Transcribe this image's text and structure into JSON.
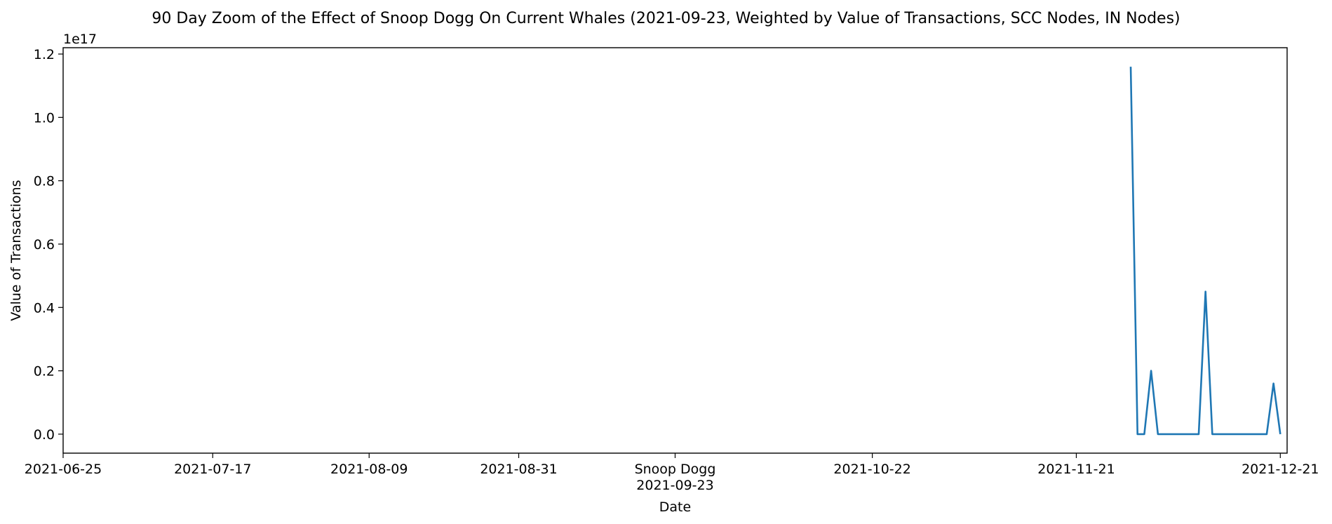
{
  "chart_data": {
    "type": "line",
    "title": "90 Day Zoom of the Effect of Snoop Dogg On Current Whales (2021-09-23, Weighted by Value of Transactions, SCC Nodes, IN Nodes)",
    "xlabel": "Date",
    "ylabel": "Value of Transactions",
    "y_offset_label": "1e17",
    "xlim": [
      "2021-06-25",
      "2021-12-22"
    ],
    "ylim": [
      -0.06,
      1.22
    ],
    "y_unit_scale": 1e+17,
    "x_ticks": [
      {
        "date": "2021-06-25",
        "label": "2021-06-25"
      },
      {
        "date": "2021-07-17",
        "label": "2021-07-17"
      },
      {
        "date": "2021-08-09",
        "label": "2021-08-09"
      },
      {
        "date": "2021-08-31",
        "label": "2021-08-31"
      },
      {
        "date": "2021-09-23",
        "label": "2021-09-23",
        "annotation": "Snoop Dogg"
      },
      {
        "date": "2021-10-22",
        "label": "2021-10-22"
      },
      {
        "date": "2021-11-21",
        "label": "2021-11-21"
      },
      {
        "date": "2021-12-21",
        "label": "2021-12-21"
      }
    ],
    "y_ticks": [
      {
        "value": 0.0,
        "label": "0.0"
      },
      {
        "value": 0.2,
        "label": "0.2"
      },
      {
        "value": 0.4,
        "label": "0.4"
      },
      {
        "value": 0.6,
        "label": "0.6"
      },
      {
        "value": 0.8,
        "label": "0.8"
      },
      {
        "value": 1.0,
        "label": "1.0"
      },
      {
        "value": 1.2,
        "label": "1.2"
      }
    ],
    "series": [
      {
        "color": "#1f77b4",
        "points": [
          {
            "x": "2021-11-29",
            "y": 1.16
          },
          {
            "x": "2021-11-30",
            "y": 0.0
          },
          {
            "x": "2021-12-01",
            "y": 0.0
          },
          {
            "x": "2021-12-02",
            "y": 0.2
          },
          {
            "x": "2021-12-03",
            "y": 0.0
          },
          {
            "x": "2021-12-04",
            "y": 0.0
          },
          {
            "x": "2021-12-05",
            "y": 0.0
          },
          {
            "x": "2021-12-06",
            "y": 0.0
          },
          {
            "x": "2021-12-07",
            "y": 0.0
          },
          {
            "x": "2021-12-08",
            "y": 0.0
          },
          {
            "x": "2021-12-09",
            "y": 0.0
          },
          {
            "x": "2021-12-10",
            "y": 0.45
          },
          {
            "x": "2021-12-11",
            "y": 0.0
          },
          {
            "x": "2021-12-12",
            "y": 0.0
          },
          {
            "x": "2021-12-13",
            "y": 0.0
          },
          {
            "x": "2021-12-14",
            "y": 0.0
          },
          {
            "x": "2021-12-15",
            "y": 0.0
          },
          {
            "x": "2021-12-16",
            "y": 0.0
          },
          {
            "x": "2021-12-17",
            "y": 0.0
          },
          {
            "x": "2021-12-18",
            "y": 0.0
          },
          {
            "x": "2021-12-19",
            "y": 0.0
          },
          {
            "x": "2021-12-20",
            "y": 0.16
          },
          {
            "x": "2021-12-21",
            "y": 0.0
          }
        ]
      }
    ]
  }
}
